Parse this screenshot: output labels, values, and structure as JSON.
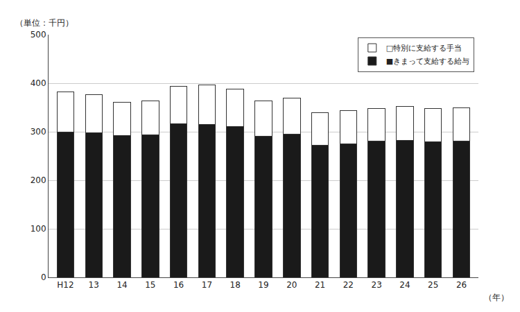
{
  "chart_data": {
    "type": "bar",
    "stacked": true,
    "categories": [
      "H12",
      "13",
      "14",
      "15",
      "16",
      "17",
      "18",
      "19",
      "20",
      "21",
      "22",
      "23",
      "24",
      "25",
      "26"
    ],
    "series": [
      {
        "name": "■きまって支給する給与",
        "color": "#1a1a1a",
        "values": [
          300,
          298,
          292,
          294,
          317,
          315,
          311,
          291,
          295,
          272,
          275,
          281,
          282,
          280,
          281
        ]
      },
      {
        "name": "□特別に支給する手当",
        "color": "#ffffff",
        "values": [
          82,
          79,
          69,
          70,
          76,
          81,
          77,
          73,
          75,
          68,
          68,
          67,
          70,
          68,
          69
        ]
      }
    ],
    "ylabel": "（単位：千円）",
    "xlabel": "（年）",
    "ylim": [
      0,
      500
    ],
    "yticks": [
      0,
      100,
      200,
      300,
      400,
      500
    ],
    "grid": true,
    "legend": "upper right"
  }
}
